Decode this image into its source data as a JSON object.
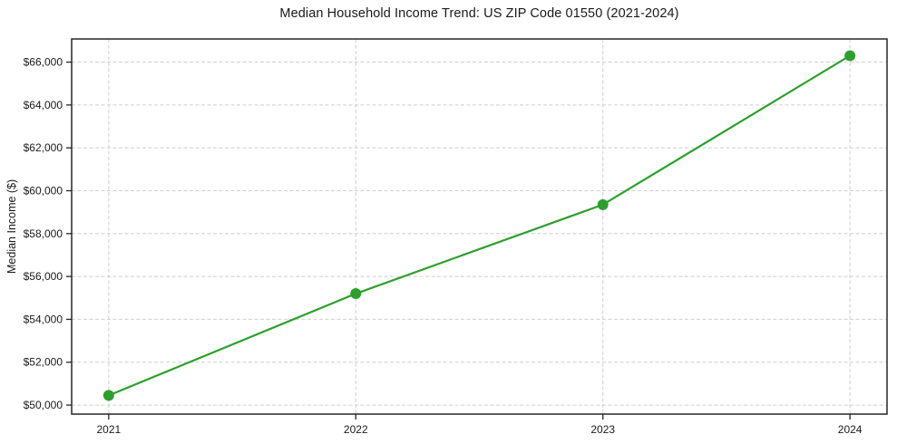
{
  "figure": {
    "background": "#ffffff"
  },
  "chart_data": {
    "type": "line",
    "title": "Median Household Income Trend: US ZIP Code 01550 (2021-2024)",
    "xlabel": "",
    "ylabel": "Median Income ($)",
    "x": [
      2021,
      2022,
      2023,
      2024
    ],
    "x_tick_labels": [
      "2021",
      "2022",
      "2023",
      "2024"
    ],
    "series": [
      {
        "name": "Median Household Income",
        "values": [
          50450,
          55200,
          59350,
          66300
        ],
        "color": "#2ca02c",
        "marker": "circle"
      }
    ],
    "y_ticks": [
      50000,
      52000,
      54000,
      56000,
      58000,
      60000,
      62000,
      64000,
      66000
    ],
    "y_tick_labels": [
      "$50,000",
      "$52,000",
      "$54,000",
      "$56,000",
      "$58,000",
      "$60,000",
      "$62,000",
      "$64,000",
      "$66,000"
    ],
    "xlim": [
      2020.85,
      2024.15
    ],
    "ylim": [
      49580,
      67080
    ],
    "grid": {
      "visible": true,
      "style": "dashed",
      "color": "#cfcfcf"
    },
    "legend": "none",
    "colors": {
      "line": "#2ca02c",
      "axis": "#262626",
      "text": "#1a1a1a"
    }
  }
}
